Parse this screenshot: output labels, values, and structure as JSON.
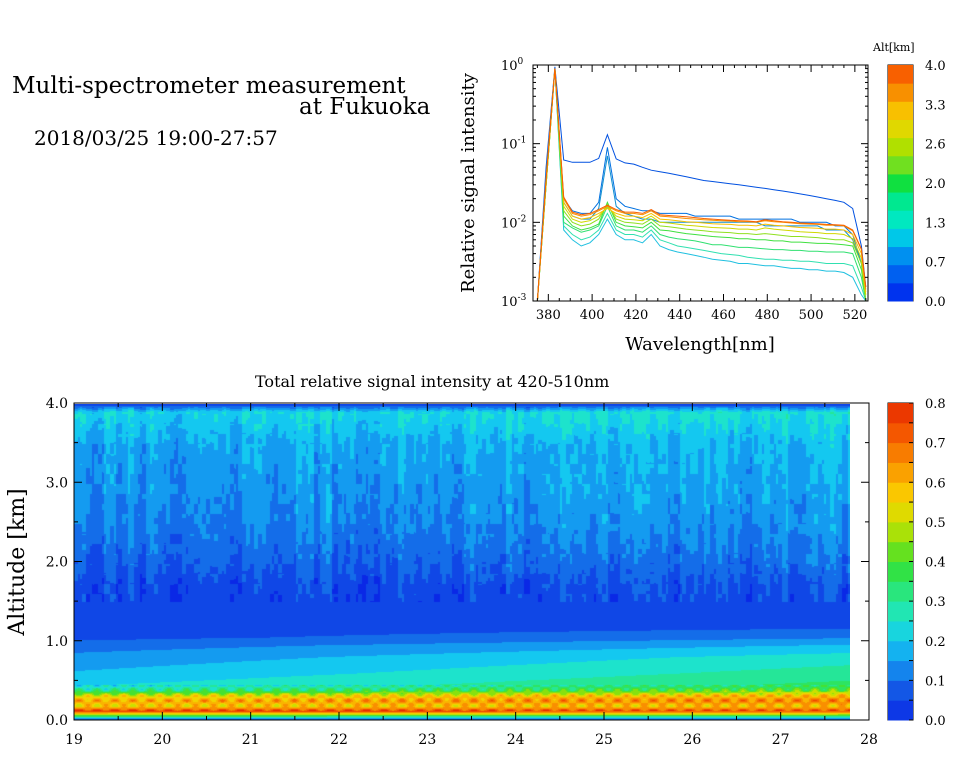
{
  "header": {
    "title_line1": "Multi-spectrometer measurement",
    "title_line2": "at Fukuoka",
    "date_range": "2018/03/25 19:00-27:57"
  },
  "chart_data": [
    {
      "type": "line",
      "xlabel": "Wavelength[nm]",
      "ylabel": "Relative signal intensity",
      "yscale": "log",
      "xlim": [
        373,
        526
      ],
      "ylim": [
        0.001,
        1
      ],
      "x_ticks": [
        "380",
        "400",
        "420",
        "440",
        "460",
        "480",
        "500",
        "520"
      ],
      "x_tick_values": [
        380,
        400,
        420,
        440,
        460,
        480,
        500,
        520
      ],
      "y_ticks": [
        "10",
        "10",
        "10",
        "10"
      ],
      "y_tick_exponents": [
        "0",
        "-1",
        "-2",
        "-3"
      ],
      "y_tick_values": [
        1,
        0.1,
        0.01,
        0.001
      ],
      "colorbar": {
        "title": "Alt[km]",
        "ticks": [
          "4.0",
          "3.3",
          "2.6",
          "2.0",
          "1.3",
          "0.7",
          "0.0"
        ],
        "colors": [
          "#0033ee",
          "#0060f0",
          "#0090f0",
          "#00c8e8",
          "#00e8c0",
          "#00e890",
          "#10e040",
          "#70e020",
          "#b0e000",
          "#e0d800",
          "#f8c000",
          "#f89000",
          "#f86000"
        ]
      },
      "x": [
        375,
        379,
        383,
        387,
        391,
        395,
        399,
        403,
        407,
        411,
        415,
        419,
        423,
        427,
        431,
        435,
        439,
        443,
        447,
        451,
        455,
        459,
        463,
        467,
        471,
        475,
        479,
        483,
        487,
        491,
        495,
        499,
        503,
        507,
        511,
        515,
        519,
        523,
        525
      ],
      "series": [
        {
          "color": "#0050e0",
          "values": [
            0.001,
            0.05,
            0.95,
            0.062,
            0.058,
            0.058,
            0.058,
            0.065,
            0.13,
            0.064,
            0.057,
            0.055,
            0.05,
            0.046,
            0.044,
            0.042,
            0.04,
            0.038,
            0.036,
            0.034,
            0.033,
            0.032,
            0.031,
            0.03,
            0.029,
            0.028,
            0.027,
            0.026,
            0.025,
            0.024,
            0.023,
            0.022,
            0.021,
            0.02,
            0.019,
            0.018,
            0.015,
            0.005,
            0.0015
          ]
        },
        {
          "color": "#0070e0",
          "values": [
            0.001,
            0.04,
            0.9,
            0.02,
            0.014,
            0.013,
            0.013,
            0.018,
            0.09,
            0.02,
            0.016,
            0.015,
            0.014,
            0.014,
            0.013,
            0.013,
            0.013,
            0.013,
            0.012,
            0.012,
            0.012,
            0.012,
            0.012,
            0.011,
            0.011,
            0.011,
            0.011,
            0.011,
            0.011,
            0.011,
            0.01,
            0.01,
            0.01,
            0.01,
            0.009,
            0.009,
            0.007,
            0.003,
            0.001
          ]
        },
        {
          "color": "#1090d0",
          "values": [
            0.001,
            0.04,
            0.9,
            0.018,
            0.012,
            0.011,
            0.011,
            0.015,
            0.07,
            0.016,
            0.013,
            0.012,
            0.011,
            0.011,
            0.01,
            0.01,
            0.01,
            0.01,
            0.01,
            0.01,
            0.01,
            0.01,
            0.01,
            0.01,
            0.01,
            0.01,
            0.009,
            0.009,
            0.009,
            0.009,
            0.009,
            0.009,
            0.009,
            0.008,
            0.008,
            0.008,
            0.006,
            0.003,
            0.001
          ]
        },
        {
          "color": "#20c0e0",
          "values": [
            0.001,
            0.03,
            0.9,
            0.008,
            0.006,
            0.005,
            0.0055,
            0.007,
            0.011,
            0.007,
            0.006,
            0.006,
            0.0055,
            0.007,
            0.005,
            0.0045,
            0.0042,
            0.004,
            0.0038,
            0.0036,
            0.0034,
            0.0033,
            0.0032,
            0.003,
            0.003,
            0.0029,
            0.0028,
            0.0028,
            0.0027,
            0.0026,
            0.0026,
            0.0025,
            0.0025,
            0.0024,
            0.0024,
            0.0023,
            0.002,
            0.0012,
            0.001
          ]
        },
        {
          "color": "#30e0b0",
          "values": [
            0.001,
            0.03,
            0.9,
            0.009,
            0.007,
            0.006,
            0.0065,
            0.008,
            0.013,
            0.008,
            0.007,
            0.007,
            0.0065,
            0.008,
            0.006,
            0.0055,
            0.005,
            0.0048,
            0.0046,
            0.0044,
            0.0042,
            0.004,
            0.0039,
            0.0038,
            0.0036,
            0.0035,
            0.0034,
            0.0034,
            0.0033,
            0.0033,
            0.0032,
            0.0032,
            0.0031,
            0.003,
            0.003,
            0.003,
            0.0028,
            0.0015,
            0.001
          ]
        },
        {
          "color": "#30e070",
          "values": [
            0.001,
            0.03,
            0.9,
            0.01,
            0.0085,
            0.0075,
            0.008,
            0.009,
            0.016,
            0.009,
            0.008,
            0.008,
            0.0075,
            0.009,
            0.007,
            0.0065,
            0.0062,
            0.006,
            0.0058,
            0.0055,
            0.0052,
            0.0052,
            0.005,
            0.0048,
            0.0048,
            0.0047,
            0.0046,
            0.0045,
            0.0045,
            0.0044,
            0.0044,
            0.0043,
            0.0043,
            0.0042,
            0.0042,
            0.0042,
            0.004,
            0.002,
            0.001
          ]
        },
        {
          "color": "#40e040",
          "values": [
            0.001,
            0.03,
            0.9,
            0.012,
            0.009,
            0.008,
            0.0085,
            0.0095,
            0.018,
            0.01,
            0.009,
            0.0088,
            0.0085,
            0.01,
            0.008,
            0.0078,
            0.0075,
            0.0072,
            0.007,
            0.0068,
            0.0066,
            0.0065,
            0.0064,
            0.0062,
            0.0062,
            0.006,
            0.006,
            0.0058,
            0.0058,
            0.0056,
            0.0056,
            0.0055,
            0.0054,
            0.0054,
            0.0053,
            0.0052,
            0.005,
            0.0025,
            0.001
          ]
        },
        {
          "color": "#90e020",
          "values": [
            0.001,
            0.03,
            0.9,
            0.014,
            0.01,
            0.009,
            0.0095,
            0.011,
            0.017,
            0.011,
            0.01,
            0.0098,
            0.0095,
            0.011,
            0.009,
            0.0088,
            0.0085,
            0.0082,
            0.008,
            0.0078,
            0.0076,
            0.0075,
            0.0074,
            0.0072,
            0.0072,
            0.007,
            0.0072,
            0.007,
            0.0068,
            0.0066,
            0.0066,
            0.0065,
            0.0064,
            0.0062,
            0.006,
            0.006,
            0.0055,
            0.003,
            0.001
          ]
        },
        {
          "color": "#d0d800",
          "values": [
            0.001,
            0.03,
            0.9,
            0.016,
            0.011,
            0.01,
            0.0105,
            0.012,
            0.016,
            0.012,
            0.011,
            0.0108,
            0.0105,
            0.012,
            0.01,
            0.0098,
            0.0095,
            0.0092,
            0.009,
            0.0088,
            0.0086,
            0.0085,
            0.0084,
            0.0082,
            0.0082,
            0.008,
            0.0085,
            0.0082,
            0.008,
            0.0078,
            0.0076,
            0.0075,
            0.0074,
            0.0072,
            0.0072,
            0.007,
            0.0062,
            0.0035,
            0.0012
          ]
        },
        {
          "color": "#f8c000",
          "values": [
            0.001,
            0.035,
            0.9,
            0.018,
            0.012,
            0.011,
            0.0115,
            0.013,
            0.015,
            0.013,
            0.012,
            0.012,
            0.0115,
            0.013,
            0.011,
            0.0108,
            0.0105,
            0.0102,
            0.01,
            0.0098,
            0.0096,
            0.0095,
            0.0094,
            0.0092,
            0.0092,
            0.009,
            0.0095,
            0.0092,
            0.009,
            0.0088,
            0.0086,
            0.0085,
            0.0084,
            0.0082,
            0.0082,
            0.008,
            0.007,
            0.004,
            0.0013
          ]
        },
        {
          "color": "#f89000",
          "values": [
            0.001,
            0.035,
            0.9,
            0.02,
            0.013,
            0.012,
            0.0125,
            0.014,
            0.016,
            0.014,
            0.013,
            0.013,
            0.0125,
            0.014,
            0.012,
            0.0118,
            0.0115,
            0.0112,
            0.011,
            0.0108,
            0.0106,
            0.0105,
            0.0104,
            0.0102,
            0.0102,
            0.01,
            0.0105,
            0.0102,
            0.01,
            0.0098,
            0.0096,
            0.0095,
            0.0094,
            0.0092,
            0.0092,
            0.009,
            0.0078,
            0.0045,
            0.0014
          ]
        },
        {
          "color": "#f86000",
          "values": [
            0.001,
            0.035,
            0.9,
            0.021,
            0.0135,
            0.0125,
            0.013,
            0.0145,
            0.0165,
            0.0145,
            0.0135,
            0.0135,
            0.013,
            0.0145,
            0.0125,
            0.0122,
            0.012,
            0.0118,
            0.0115,
            0.0112,
            0.011,
            0.0108,
            0.0106,
            0.0105,
            0.0104,
            0.0102,
            0.0108,
            0.0105,
            0.0102,
            0.01,
            0.0098,
            0.0097,
            0.0096,
            0.0094,
            0.0093,
            0.0092,
            0.008,
            0.0046,
            0.0015
          ]
        }
      ]
    },
    {
      "type": "heatmap",
      "title": "Total relative signal intensity at 420-510nm",
      "ylabel": "Altitude [km]",
      "xlabel": "",
      "xlim": [
        19,
        28
      ],
      "ylim": [
        0,
        4
      ],
      "data_time_range": [
        19,
        27.95
      ],
      "x_ticks": [
        "19",
        "20",
        "21",
        "22",
        "23",
        "24",
        "25",
        "26",
        "27",
        "28"
      ],
      "x_tick_values": [
        19,
        20,
        21,
        22,
        23,
        24,
        25,
        26,
        27,
        28
      ],
      "y_ticks": [
        "0.0",
        "1.0",
        "2.0",
        "3.0",
        "4.0"
      ],
      "y_tick_values": [
        0,
        1,
        2,
        3,
        4
      ],
      "colorbar": {
        "ticks": [
          "0.8",
          "0.7",
          "0.6",
          "0.5",
          "0.4",
          "0.3",
          "0.2",
          "0.1",
          "0.0"
        ],
        "range": [
          0,
          0.8
        ]
      },
      "profile_altitude_km": [
        0.0,
        0.12,
        0.18,
        0.25,
        0.32,
        0.38,
        0.45,
        0.6,
        0.8,
        0.95,
        1.05,
        1.2,
        1.4,
        1.7,
        2.0,
        2.5,
        3.0,
        3.5,
        3.9,
        4.0
      ],
      "profile_value_start": [
        0.0,
        0.78,
        0.55,
        0.62,
        0.5,
        0.3,
        0.22,
        0.18,
        0.14,
        0.1,
        0.06,
        0.04,
        0.04,
        0.05,
        0.08,
        0.12,
        0.14,
        0.16,
        0.22,
        0.05
      ],
      "profile_value_end": [
        0.0,
        0.75,
        0.58,
        0.68,
        0.58,
        0.42,
        0.34,
        0.3,
        0.25,
        0.18,
        0.12,
        0.06,
        0.05,
        0.06,
        0.1,
        0.14,
        0.16,
        0.18,
        0.24,
        0.05
      ]
    }
  ]
}
